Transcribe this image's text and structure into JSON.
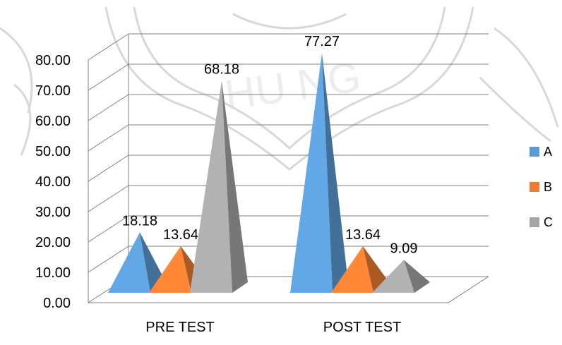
{
  "chart_data": {
    "type": "bar",
    "style": "3d-pyramid",
    "categories": [
      "PRE TEST",
      "POST TEST"
    ],
    "series": [
      {
        "name": "A",
        "values": [
          18.18,
          77.27
        ],
        "color": "#5B9BD5"
      },
      {
        "name": "B",
        "values": [
          13.64,
          13.64
        ],
        "color": "#ED7D31"
      },
      {
        "name": "C",
        "values": [
          68.18,
          9.09
        ],
        "color": "#A5A5A5"
      }
    ],
    "ylim": [
      0,
      80
    ],
    "yticks": [
      "0.00",
      "10.00",
      "20.00",
      "30.00",
      "40.00",
      "50.00",
      "60.00",
      "70.00",
      "80.00"
    ],
    "grid": true,
    "legend": "right"
  }
}
